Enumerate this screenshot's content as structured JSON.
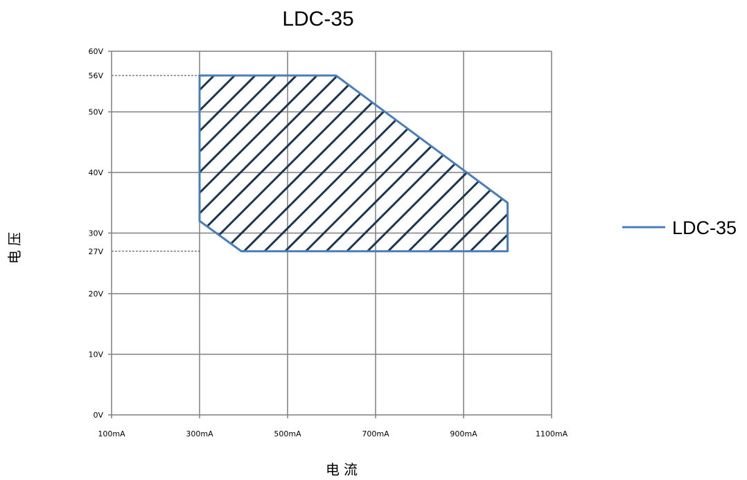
{
  "chart_data": {
    "type": "area",
    "title": "LDC-35",
    "xlabel": "电流",
    "ylabel": "电压",
    "x_unit": "mA",
    "y_unit": "V",
    "xlim": [
      100,
      1100
    ],
    "ylim": [
      0,
      60
    ],
    "x_ticks": [
      100,
      300,
      500,
      700,
      900,
      1100
    ],
    "x_tick_labels": [
      "100mA",
      "300mA",
      "500mA",
      "700mA",
      "900mA",
      "1100mA"
    ],
    "y_ticks": [
      0,
      10,
      20,
      30,
      40,
      50,
      60
    ],
    "y_tick_labels": [
      "0V",
      "10V",
      "20V",
      "30V",
      "40V",
      "50V",
      "60V"
    ],
    "reference_lines": [
      {
        "y": 56,
        "label": "56V"
      },
      {
        "y": 27,
        "label": "27V"
      }
    ],
    "grid": true,
    "legend": {
      "placement": "right",
      "entries": [
        "LDC-35"
      ]
    },
    "series": [
      {
        "name": "LDC-35",
        "color": "#4a7ebb",
        "fill": "hatched",
        "points": [
          {
            "x": 300,
            "y": 56
          },
          {
            "x": 610,
            "y": 56
          },
          {
            "x": 1000,
            "y": 35
          },
          {
            "x": 1000,
            "y": 27
          },
          {
            "x": 395,
            "y": 27
          },
          {
            "x": 300,
            "y": 32
          },
          {
            "x": 300,
            "y": 56
          }
        ]
      }
    ]
  }
}
